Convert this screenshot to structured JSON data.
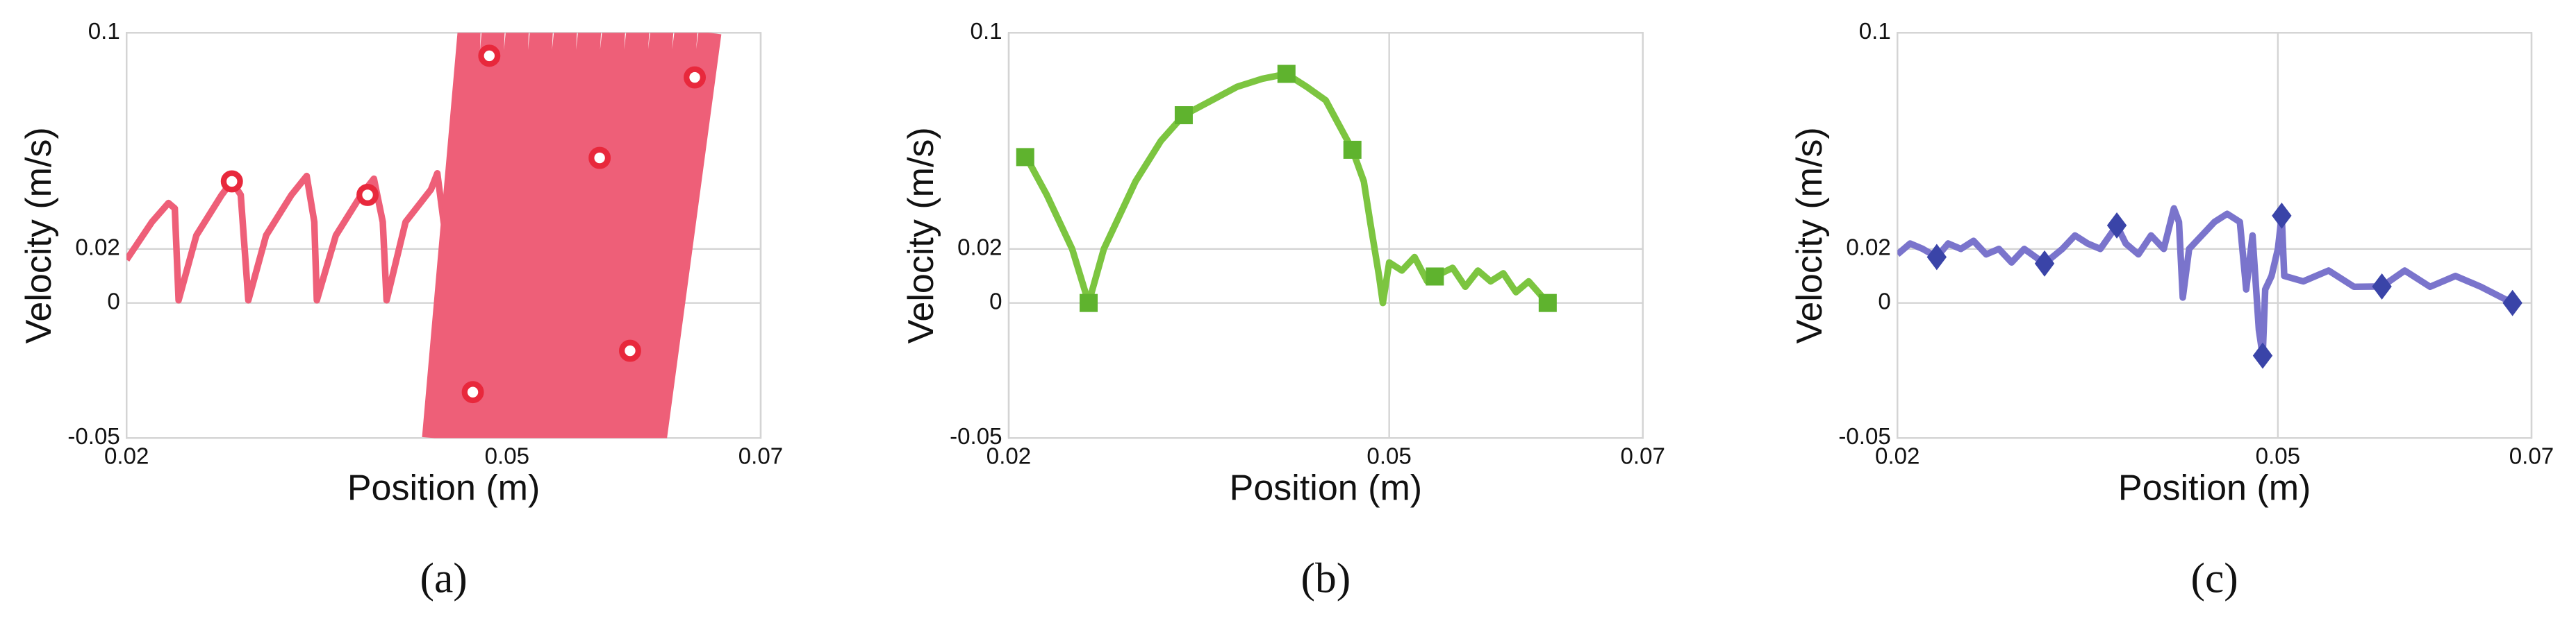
{
  "chart_data": [
    {
      "type": "line",
      "caption": "(a)",
      "xlabel": "Position (m)",
      "ylabel": "Velocity (m/s)",
      "xlim": [
        0.02,
        0.07
      ],
      "ylim": [
        -0.05,
        0.1
      ],
      "xticks": [
        0.02,
        0.05,
        0.07
      ],
      "yticks": [
        -0.05,
        0,
        0.02,
        0.1
      ],
      "grid": true,
      "series": [
        {
          "style": "line",
          "color": "#ee5f78",
          "x": [
            0.02,
            0.022,
            0.0233,
            0.0238,
            0.0241,
            0.0255,
            0.0275,
            0.0283,
            0.029,
            0.0296,
            0.031,
            0.033,
            0.0342,
            0.0348,
            0.035,
            0.0365,
            0.0385,
            0.0395,
            0.0402,
            0.0405,
            0.042,
            0.044,
            0.0445,
            0.045,
            0.0455,
            0.0462
          ],
          "values": [
            0.016,
            0.03,
            0.037,
            0.035,
            0.001,
            0.025,
            0.04,
            0.045,
            0.04,
            0.001,
            0.025,
            0.04,
            0.047,
            0.03,
            0.001,
            0.025,
            0.04,
            0.046,
            0.03,
            0.001,
            0.03,
            0.042,
            0.048,
            0.03,
            0.015,
            0.02
          ]
        },
        {
          "style": "band",
          "color": "#ee5f78",
          "x": [
            0.0442,
            0.047,
            0.046,
            0.0489,
            0.0477,
            0.0508,
            0.0495,
            0.0527,
            0.0512,
            0.0546,
            0.053,
            0.0565,
            0.0547,
            0.0584,
            0.0565,
            0.0603,
            0.0582,
            0.0622,
            0.06,
            0.0641,
            0.0617,
            0.066
          ],
          "values": [
            -0.05,
            0.1,
            -0.05,
            0.1,
            -0.05,
            0.1,
            -0.05,
            0.1,
            -0.05,
            0.1,
            -0.05,
            0.1,
            -0.05,
            0.1,
            -0.05,
            0.1,
            -0.05,
            0.1,
            -0.05,
            0.1,
            -0.05,
            0.1
          ]
        },
        {
          "style": "markers",
          "marker": "circle",
          "color": "#e8283c",
          "x": [
            0.0283,
            0.039,
            0.0486,
            0.0573,
            0.0648,
            0.0473,
            0.0597
          ],
          "values": [
            0.045,
            0.04,
            0.0915,
            0.0537,
            0.0835,
            -0.033,
            -0.0177
          ]
        }
      ]
    },
    {
      "type": "line",
      "caption": "(b)",
      "xlabel": "Position (m)",
      "ylabel": "Velocity (m/s)",
      "xlim": [
        0.02,
        0.07
      ],
      "ylim": [
        -0.05,
        0.1
      ],
      "xticks": [
        0.02,
        0.05,
        0.07
      ],
      "yticks": [
        -0.05,
        0,
        0.02,
        0.1
      ],
      "grid": true,
      "series": [
        {
          "style": "line",
          "color": "#7cc540",
          "x": [
            0.0207,
            0.0215,
            0.023,
            0.025,
            0.0263,
            0.0275,
            0.03,
            0.032,
            0.0338,
            0.036,
            0.038,
            0.04,
            0.0419,
            0.0435,
            0.045,
            0.0471,
            0.048,
            0.0485,
            0.0492,
            0.0495,
            0.05,
            0.051,
            0.052,
            0.053,
            0.0536,
            0.055,
            0.056,
            0.057,
            0.058,
            0.059,
            0.06,
            0.061,
            0.0625
          ],
          "values": [
            0.054,
            0.053,
            0.04,
            0.02,
            0,
            0.02,
            0.045,
            0.06,
            0.0695,
            0.075,
            0.08,
            0.083,
            0.0848,
            0.08,
            0.075,
            0.0567,
            0.045,
            0.03,
            0.01,
            0,
            0.015,
            0.012,
            0.017,
            0.008,
            0.0098,
            0.013,
            0.006,
            0.012,
            0.008,
            0.011,
            0.004,
            0.008,
            0
          ]
        },
        {
          "style": "markers",
          "marker": "square",
          "color": "#5fb32e",
          "x": [
            0.0213,
            0.0263,
            0.0338,
            0.0419,
            0.0471,
            0.0536,
            0.0625
          ],
          "values": [
            0.054,
            0,
            0.0695,
            0.0848,
            0.0567,
            0.0098,
            0
          ]
        }
      ]
    },
    {
      "type": "line",
      "caption": "(c)",
      "xlabel": "Position (m)",
      "ylabel": "Velocity (m/s)",
      "xlim": [
        0.02,
        0.07
      ],
      "ylim": [
        -0.05,
        0.1
      ],
      "xticks": [
        0.02,
        0.05,
        0.07
      ],
      "yticks": [
        -0.05,
        0,
        0.02,
        0.1
      ],
      "grid": true,
      "series": [
        {
          "style": "line",
          "color": "#7a74cc",
          "x": [
            0.02,
            0.021,
            0.022,
            0.0231,
            0.024,
            0.025,
            0.026,
            0.027,
            0.028,
            0.029,
            0.03,
            0.0316,
            0.033,
            0.034,
            0.035,
            0.036,
            0.0373,
            0.038,
            0.039,
            0.04,
            0.041,
            0.0418,
            0.0422,
            0.0425,
            0.043,
            0.044,
            0.045,
            0.046,
            0.047,
            0.0475,
            0.048,
            0.0485,
            0.0488,
            0.049,
            0.0495,
            0.05,
            0.0503,
            0.0505,
            0.052,
            0.054,
            0.056,
            0.0582,
            0.06,
            0.062,
            0.064,
            0.066,
            0.0685
          ],
          "values": [
            0.018,
            0.022,
            0.02,
            0.017,
            0.022,
            0.02,
            0.023,
            0.018,
            0.02,
            0.015,
            0.02,
            0.0146,
            0.02,
            0.025,
            0.022,
            0.02,
            0.0287,
            0.022,
            0.018,
            0.025,
            0.02,
            0.035,
            0.03,
            0.002,
            0.02,
            0.025,
            0.03,
            0.033,
            0.03,
            0.005,
            0.025,
            -0.01,
            -0.0195,
            0.005,
            0.01,
            0.02,
            0.0323,
            0.01,
            0.008,
            0.012,
            0.006,
            0.0061,
            0.012,
            0.006,
            0.01,
            0.006,
            0
          ]
        },
        {
          "style": "markers",
          "marker": "diamond",
          "color": "#3a44a8",
          "x": [
            0.0231,
            0.0316,
            0.0373,
            0.0488,
            0.0503,
            0.0582,
            0.0685
          ],
          "values": [
            0.017,
            0.0146,
            0.0287,
            -0.0195,
            0.0323,
            0.0061,
            0
          ]
        }
      ]
    }
  ]
}
